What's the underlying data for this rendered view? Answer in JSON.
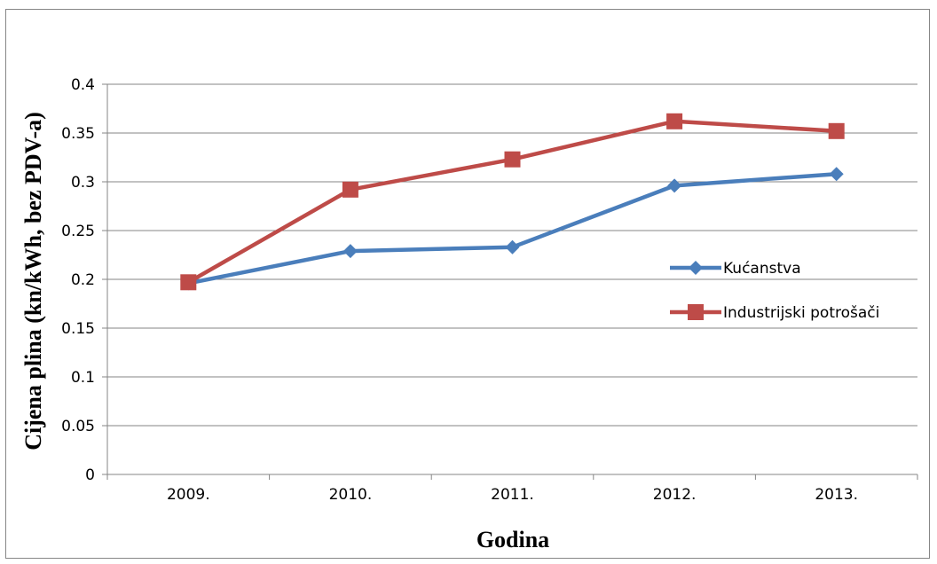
{
  "chart_data": {
    "type": "line",
    "title": "",
    "xlabel": "Godina",
    "ylabel": "Cijena plina (kn/kWh, bez PDV-a)",
    "categories": [
      "2009.",
      "2010.",
      "2011.",
      "2012.",
      "2013."
    ],
    "ylim": [
      0,
      0.4
    ],
    "yticks": [
      "0",
      "0.05",
      "0.1",
      "0.15",
      "0.2",
      "0.25",
      "0.3",
      "0.35",
      "0.4"
    ],
    "ytick_values": [
      0,
      0.05,
      0.1,
      0.15,
      0.2,
      0.25,
      0.3,
      0.35,
      0.4
    ],
    "grid": "horizontal",
    "legend_position": "right",
    "series": [
      {
        "name": "Kućanstva",
        "values": [
          0.196,
          0.229,
          0.233,
          0.296,
          0.308
        ],
        "color": "#4a7ebb",
        "marker": "diamond"
      },
      {
        "name": "Industrijski potrošači",
        "values": [
          0.197,
          0.292,
          0.323,
          0.362,
          0.352
        ],
        "color": "#be4b48",
        "marker": "square"
      }
    ]
  }
}
